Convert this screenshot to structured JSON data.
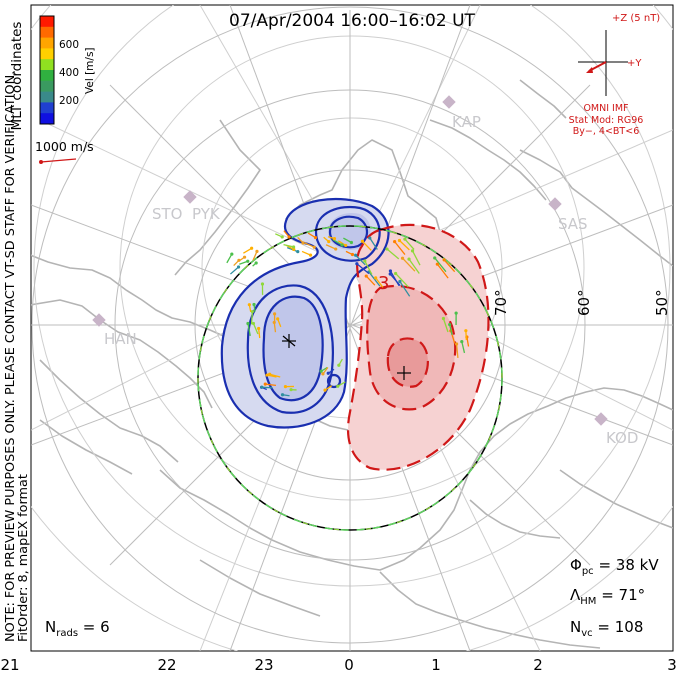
{
  "header": {
    "title": "07/Apr/2004  16:00–16:02  UT"
  },
  "colorbar": {
    "unit_label": "Vel [m/s]",
    "ticks": [
      "600",
      "400",
      "200"
    ],
    "colors": [
      "#ff1a00",
      "#ff6a00",
      "#ffa500",
      "#ffd000",
      "#90e020",
      "#30b040",
      "#3a9a60",
      "#3a8a8a",
      "#2040d0",
      "#1010e0"
    ]
  },
  "left_margin": {
    "note": "NOTE: FOR PREVIEW PURPOSES ONLY. PLEASE CONTACT VT-SD STAFF FOR VERIFICATION.",
    "fit": "FitOrder: 8,  mapEX format",
    "coords": "MLT coordinates",
    "ref_vector": "1000 m/s"
  },
  "imf": {
    "z_label": "+Z (5 nT)",
    "y_label": "+Y",
    "source": "OMNI IMF",
    "stat_mod": "Stat Mod: RG96",
    "condition": "By−, 4<BT<6"
  },
  "stations": [
    "STO",
    "PYK",
    "HAN",
    "KAP",
    "SAS",
    "KOD"
  ],
  "lat_labels": [
    "70°",
    "60°",
    "50°"
  ],
  "mlt_labels": [
    "21",
    "22",
    "23",
    "0",
    "1",
    "2",
    "3"
  ],
  "stats": {
    "npc": "38 kV",
    "npc_sym": "Φ",
    "npc_sub": "pc",
    "lhm": "71°",
    "lhm_sym": "Λ",
    "lhm_sub": "HM",
    "nvc": "108",
    "nvc_sym": "N",
    "nvc_sub": "vc",
    "nrads": "6",
    "nrads_sym": "N",
    "nrads_sub": "rads"
  },
  "contour_label": "3",
  "colors": {
    "neg": "#1a2fb0",
    "pos": "#d01818",
    "neg_fill": "#d6daf0",
    "pos_fill": "#f6d2d2",
    "imf": "#d01818"
  },
  "chart_data": {
    "type": "convection map",
    "title": "07/Apr/2004  16:00–16:02  UT",
    "coordinates": "MLT",
    "mlt_ticks": [
      21,
      22,
      23,
      0,
      1,
      2,
      3
    ],
    "lat_ticks": [
      70,
      60,
      50
    ],
    "cross_polar_cap_potential_kV": 38,
    "heppner_maynard_boundary_deg": 71,
    "n_vectors": 108,
    "n_radars": 6,
    "velocity_scale_m_s": [
      200,
      400,
      600
    ],
    "reference_vector_m_s": 1000
  }
}
